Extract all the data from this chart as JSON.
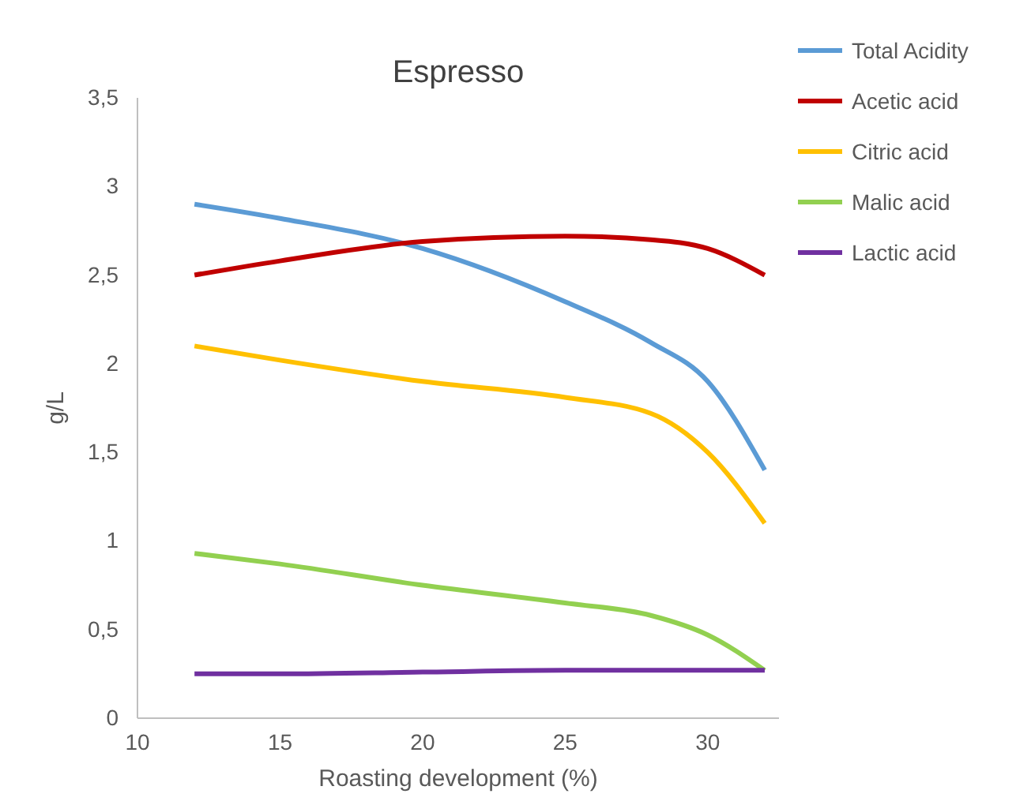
{
  "chart_data": {
    "type": "line",
    "title": "Espresso",
    "xlabel": "Roasting development (%)",
    "ylabel": "g/L",
    "x": [
      12,
      15,
      20,
      25,
      28,
      30,
      32
    ],
    "series": [
      {
        "name": "Total Acidity",
        "color": "#5b9bd5",
        "values": [
          2.9,
          2.82,
          2.65,
          2.35,
          2.12,
          1.9,
          1.4
        ]
      },
      {
        "name": "Acetic acid",
        "color": "#c00000",
        "values": [
          2.5,
          2.58,
          2.69,
          2.72,
          2.7,
          2.65,
          2.5
        ]
      },
      {
        "name": "Citric acid",
        "color": "#ffc000",
        "values": [
          2.1,
          2.02,
          1.9,
          1.81,
          1.72,
          1.5,
          1.1
        ]
      },
      {
        "name": "Malic acid",
        "color": "#92d050",
        "values": [
          0.93,
          0.87,
          0.75,
          0.65,
          0.58,
          0.47,
          0.27
        ]
      },
      {
        "name": "Lactic acid",
        "color": "#7030a0",
        "values": [
          0.25,
          0.25,
          0.26,
          0.27,
          0.27,
          0.27,
          0.27
        ]
      }
    ],
    "xlim": [
      10,
      32.5
    ],
    "xticks": [
      10,
      15,
      20,
      25,
      30
    ],
    "ylim": [
      0,
      3.5
    ],
    "yticks": [
      0,
      {
        "value": 0.5,
        "label": "0,5"
      },
      1,
      {
        "value": 1.5,
        "label": "1,5"
      },
      2,
      {
        "value": 2.5,
        "label": "2,5"
      },
      3,
      {
        "value": 3.5,
        "label": "3,5"
      }
    ],
    "grid": false,
    "legend": "right",
    "marker": "none",
    "line_style": "solid"
  }
}
